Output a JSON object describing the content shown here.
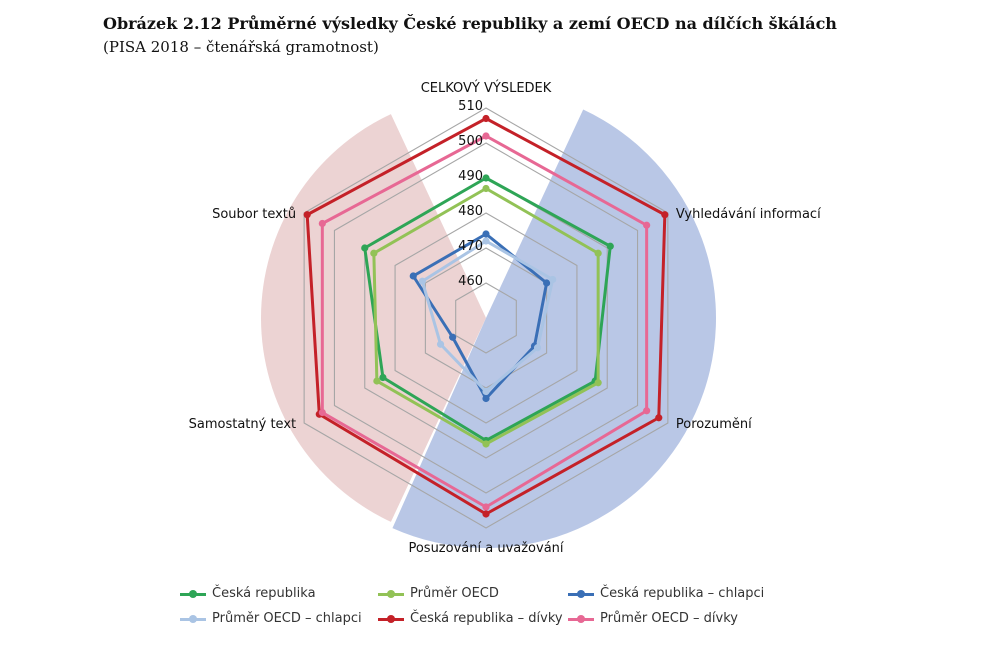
{
  "title": "Obrázek 2.12 Průměrné výsledky České republiky a zemí OECD na dílčích škálách",
  "subtitle": "(PISA 2018 – čtenářská gramotnost)",
  "chart_data": {
    "type": "radar",
    "axes": [
      "CELKOVÝ VÝSLEDEK",
      "Vyhledávání informací",
      "Porozumění",
      "Posuzování a uvažování",
      "Samostatný text",
      "Soubor textů"
    ],
    "r_ticks": [
      460,
      470,
      480,
      490,
      500,
      510
    ],
    "r_range": [
      450,
      510
    ],
    "grid": true,
    "background_sectors": [
      {
        "name": "left",
        "color": "#ecd3d3"
      },
      {
        "name": "right",
        "color": "#b9c7e6"
      }
    ],
    "legend_position": "bottom",
    "series": [
      {
        "name": "Česká republika",
        "color": "#2ea556",
        "values": [
          490,
          491,
          486,
          485,
          484,
          490
        ]
      },
      {
        "name": "Průměr OECD",
        "color": "#92c256",
        "values": [
          487,
          487,
          487,
          486,
          486,
          487
        ]
      },
      {
        "name": "Česká republika – chlapci",
        "color": "#3a6fb6",
        "values": [
          474,
          470,
          466,
          473,
          461,
          474
        ]
      },
      {
        "name": "Průměr OECD – chlapci",
        "color": "#aac4e4",
        "values": [
          472,
          472,
          467,
          471,
          465,
          471
        ]
      },
      {
        "name": "Česká republika – dívky",
        "color": "#c42128",
        "values": [
          507,
          509,
          507,
          506,
          505,
          509
        ]
      },
      {
        "name": "Průměr OECD – dívky",
        "color": "#e76894",
        "values": [
          502,
          503,
          503,
          504,
          504,
          504
        ]
      }
    ]
  }
}
